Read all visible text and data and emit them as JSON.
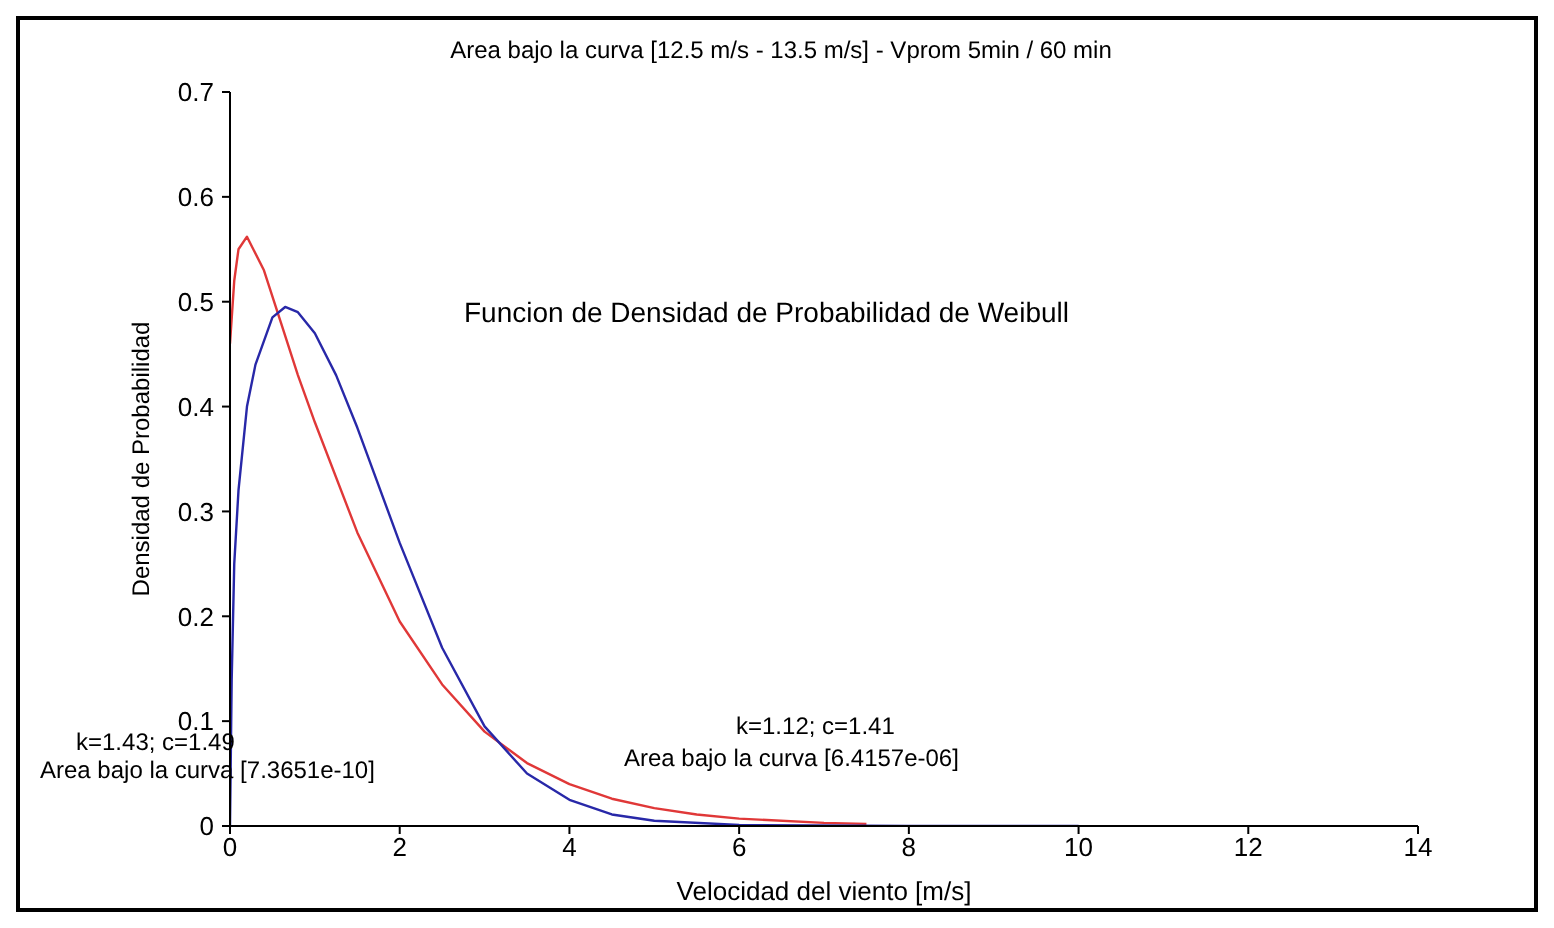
{
  "chart_data": {
    "type": "line",
    "title": "Area bajo la curva [12.5 m/s - 13.5 m/s] - Vprom 5min / 60 min",
    "subtitle": "Funcion de Densidad de Probabilidad de Weibull",
    "xlabel": "Velocidad del viento [m/s]",
    "ylabel": "Densidad de Probabilidad",
    "xlim": [
      0,
      14
    ],
    "xticks": [
      0,
      2,
      4,
      6,
      8,
      10,
      12,
      14
    ],
    "ylim": [
      0,
      0.7
    ],
    "yticks": [
      0,
      0.1,
      0.2,
      0.3,
      0.4,
      0.5,
      0.6,
      0.7
    ],
    "grid": false,
    "legend": false,
    "marker": "none",
    "line_style": "solid",
    "annotations": [
      "k=1.43; c=1.49",
      "Area bajo la curva [7.3651e-10]",
      "k=1.12; c=1.41",
      "Area bajo la curva [6.4157e-06]"
    ],
    "series": [
      {
        "color": "#e03838",
        "x": [
          0,
          0.05,
          0.1,
          0.2,
          0.4,
          0.6,
          0.8,
          1.0,
          1.5,
          2.0,
          2.5,
          3.0,
          3.5,
          4.0,
          4.5,
          5.0,
          5.5,
          6.0,
          7.0,
          7.5
        ],
        "values": [
          0.46,
          0.52,
          0.55,
          0.562,
          0.53,
          0.48,
          0.43,
          0.385,
          0.28,
          0.195,
          0.135,
          0.09,
          0.06,
          0.04,
          0.026,
          0.017,
          0.011,
          0.007,
          0.003,
          0.002
        ]
      },
      {
        "color": "#2828a8",
        "x": [
          0,
          0.02,
          0.05,
          0.1,
          0.2,
          0.3,
          0.5,
          0.65,
          0.8,
          1.0,
          1.25,
          1.5,
          2.0,
          2.5,
          3.0,
          3.5,
          4.0,
          4.5,
          5.0,
          6.0,
          8.0,
          10.0
        ],
        "values": [
          0,
          0.14,
          0.25,
          0.32,
          0.4,
          0.44,
          0.485,
          0.495,
          0.49,
          0.47,
          0.43,
          0.38,
          0.27,
          0.17,
          0.095,
          0.05,
          0.025,
          0.011,
          0.005,
          0.001,
          0,
          0
        ]
      }
    ]
  }
}
